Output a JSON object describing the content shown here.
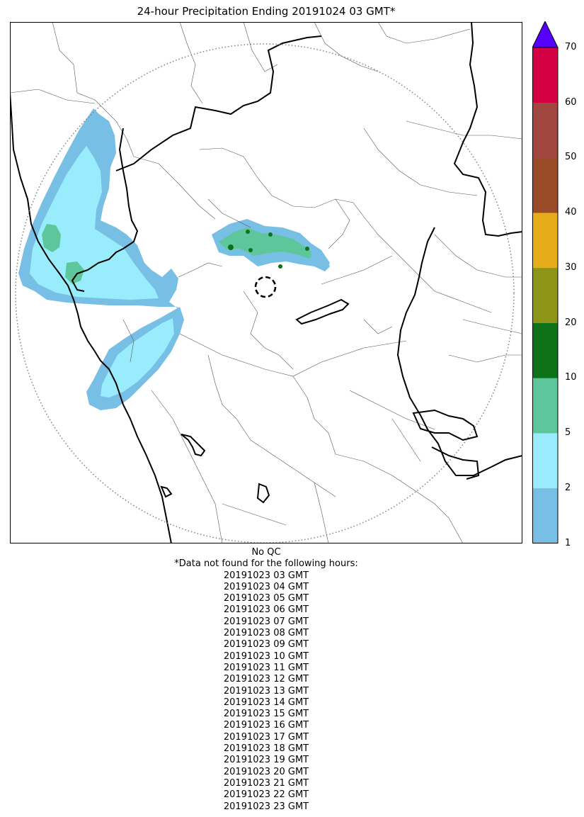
{
  "title": "24-hour Precipitation Ending 20191024 03 GMT*",
  "map": {
    "radar_marker": "dashed-circle",
    "range_ring": "dotted-circle"
  },
  "colorbar": {
    "ticks": [
      "1",
      "2",
      "5",
      "10",
      "20",
      "30",
      "40",
      "50",
      "60",
      "70"
    ],
    "bins": [
      {
        "from": 1,
        "to": 2,
        "color": "#77bfe4"
      },
      {
        "from": 2,
        "to": 5,
        "color": "#98ecfb"
      },
      {
        "from": 5,
        "to": 10,
        "color": "#5dc69a"
      },
      {
        "from": 10,
        "to": 20,
        "color": "#0e721a"
      },
      {
        "from": 20,
        "to": 30,
        "color": "#8c9518"
      },
      {
        "from": 30,
        "to": 40,
        "color": "#e6ac1a"
      },
      {
        "from": 40,
        "to": 50,
        "color": "#9c4b28"
      },
      {
        "from": 50,
        "to": 60,
        "color": "#a24740"
      },
      {
        "from": 60,
        "to": 70,
        "color": "#d30043"
      }
    ],
    "extend_color": "#5500ff"
  },
  "qc_note": "No QC",
  "missing_header": "*Data not found for the following hours:",
  "missing_hours": [
    "20191023 03 GMT",
    "20191023 04 GMT",
    "20191023 05 GMT",
    "20191023 06 GMT",
    "20191023 07 GMT",
    "20191023 08 GMT",
    "20191023 09 GMT",
    "20191023 10 GMT",
    "20191023 11 GMT",
    "20191023 12 GMT",
    "20191023 13 GMT",
    "20191023 14 GMT",
    "20191023 15 GMT",
    "20191023 16 GMT",
    "20191023 17 GMT",
    "20191023 18 GMT",
    "20191023 19 GMT",
    "20191023 20 GMT",
    "20191023 21 GMT",
    "20191023 22 GMT",
    "20191023 23 GMT"
  ]
}
